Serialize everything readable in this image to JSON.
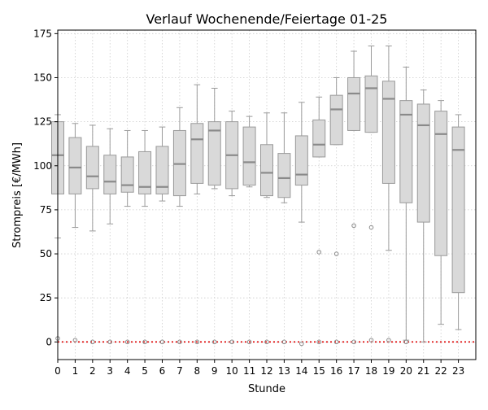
{
  "chart_data": {
    "type": "box",
    "title": "Verlauf Wochenende/Feiertage 01-25",
    "xlabel": "Stunde",
    "ylabel": "Strompreis [€/MWh]",
    "ylim": [
      -10,
      177
    ],
    "xlim": [
      0,
      24
    ],
    "yticks": [
      0,
      25,
      50,
      75,
      100,
      125,
      150,
      175
    ],
    "categories": [
      "0",
      "1",
      "2",
      "3",
      "4",
      "5",
      "6",
      "7",
      "8",
      "9",
      "10",
      "11",
      "12",
      "13",
      "14",
      "15",
      "16",
      "17",
      "18",
      "19",
      "20",
      "21",
      "22",
      "23"
    ],
    "grid": true,
    "reference_line": {
      "y": 0,
      "color": "#dd0000",
      "style": "dotted"
    },
    "colors": {
      "box_fill": "#d9d9d9",
      "box_edge": "#9a9a9a",
      "median": "#8a8a8a",
      "grid": "#cccccc"
    },
    "boxes": [
      {
        "x": 0,
        "whislo": 59,
        "q1": 84,
        "med": 106,
        "q3": 125,
        "whishi": 129,
        "fliers": [
          2
        ]
      },
      {
        "x": 1,
        "whislo": 65,
        "q1": 84,
        "med": 99,
        "q3": 116,
        "whishi": 124,
        "fliers": [
          1
        ]
      },
      {
        "x": 2,
        "whislo": 63,
        "q1": 87,
        "med": 94,
        "q3": 111,
        "whishi": 123,
        "fliers": [
          0
        ]
      },
      {
        "x": 3,
        "whislo": 67,
        "q1": 84,
        "med": 91,
        "q3": 106,
        "whishi": 121,
        "fliers": [
          0
        ]
      },
      {
        "x": 4,
        "whislo": 77,
        "q1": 85,
        "med": 89,
        "q3": 105,
        "whishi": 120,
        "fliers": [
          0
        ]
      },
      {
        "x": 5,
        "whislo": 77,
        "q1": 84,
        "med": 88,
        "q3": 108,
        "whishi": 120,
        "fliers": [
          0
        ]
      },
      {
        "x": 6,
        "whislo": 80,
        "q1": 84,
        "med": 88,
        "q3": 111,
        "whishi": 122,
        "fliers": [
          0
        ]
      },
      {
        "x": 7,
        "whislo": 77,
        "q1": 83,
        "med": 101,
        "q3": 120,
        "whishi": 133,
        "fliers": [
          0
        ]
      },
      {
        "x": 8,
        "whislo": 84,
        "q1": 90,
        "med": 115,
        "q3": 124,
        "whishi": 146,
        "fliers": [
          0
        ]
      },
      {
        "x": 9,
        "whislo": 87,
        "q1": 89,
        "med": 120,
        "q3": 125,
        "whishi": 144,
        "fliers": [
          0
        ]
      },
      {
        "x": 10,
        "whislo": 83,
        "q1": 87,
        "med": 106,
        "q3": 125,
        "whishi": 131,
        "fliers": [
          0
        ]
      },
      {
        "x": 11,
        "whislo": 88,
        "q1": 89,
        "med": 102,
        "q3": 122,
        "whishi": 128,
        "fliers": [
          0
        ]
      },
      {
        "x": 12,
        "whislo": 82,
        "q1": 83,
        "med": 96,
        "q3": 112,
        "whishi": 130,
        "fliers": [
          0
        ]
      },
      {
        "x": 13,
        "whislo": 79,
        "q1": 82,
        "med": 93,
        "q3": 107,
        "whishi": 130,
        "fliers": [
          0
        ]
      },
      {
        "x": 14,
        "whislo": 68,
        "q1": 89,
        "med": 95,
        "q3": 117,
        "whishi": 136,
        "fliers": [
          -1
        ]
      },
      {
        "x": 15,
        "whislo": 105,
        "q1": 105,
        "med": 112,
        "q3": 126,
        "whishi": 139,
        "fliers": [
          51,
          0
        ]
      },
      {
        "x": 16,
        "whislo": 112,
        "q1": 112,
        "med": 132,
        "q3": 140,
        "whishi": 150,
        "fliers": [
          50,
          0
        ]
      },
      {
        "x": 17,
        "whislo": 120,
        "q1": 120,
        "med": 141,
        "q3": 150,
        "whishi": 165,
        "fliers": [
          66,
          0
        ]
      },
      {
        "x": 18,
        "whislo": 119,
        "q1": 119,
        "med": 144,
        "q3": 151,
        "whishi": 168,
        "fliers": [
          65,
          1
        ]
      },
      {
        "x": 19,
        "whislo": 52,
        "q1": 90,
        "med": 138,
        "q3": 148,
        "whishi": 168,
        "fliers": [
          1
        ]
      },
      {
        "x": 20,
        "whislo": 1,
        "q1": 79,
        "med": 129,
        "q3": 137,
        "whishi": 156,
        "fliers": [
          0
        ]
      },
      {
        "x": 21,
        "whislo": 0,
        "q1": 68,
        "med": 123,
        "q3": 135,
        "whishi": 143,
        "fliers": []
      },
      {
        "x": 22,
        "whislo": 10,
        "q1": 49,
        "med": 118,
        "q3": 131,
        "whishi": 137,
        "fliers": []
      },
      {
        "x": 23,
        "whislo": 7,
        "q1": 28,
        "med": 109,
        "q3": 122,
        "whishi": 129,
        "fliers": []
      }
    ]
  }
}
